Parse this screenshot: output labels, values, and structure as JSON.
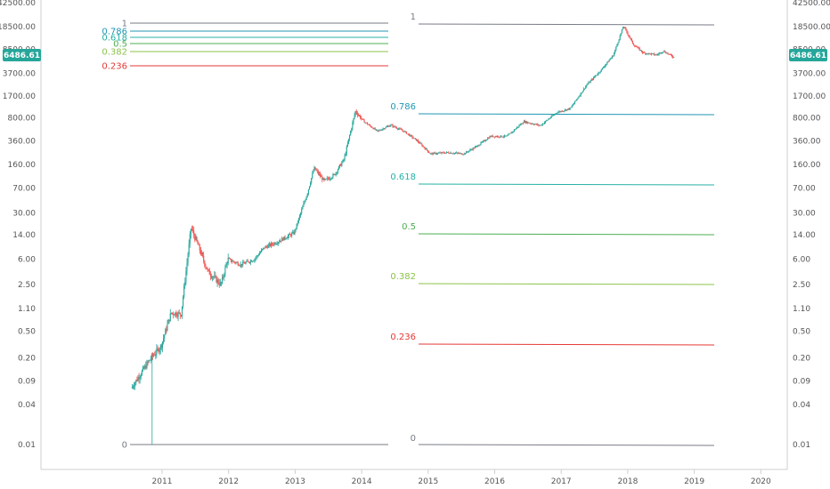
{
  "chart_data": {
    "type": "candlestick",
    "scale": "log",
    "y_ticks": [
      "42500.00",
      "18500.00",
      "8500.00",
      "3700.00",
      "1700.00",
      "800.00",
      "360.00",
      "160.00",
      "70.00",
      "30.00",
      "14.00",
      "6.00",
      "2.50",
      "1.10",
      "0.50",
      "0.20",
      "0.09",
      "0.04",
      "0.01"
    ],
    "x_ticks": [
      "2011",
      "2012",
      "2013",
      "2014",
      "2015",
      "2016",
      "2017",
      "2018",
      "2019",
      "2020"
    ],
    "last_price": "6486.61",
    "colors": {
      "up": "#26a69a",
      "down": "#ef5350",
      "price_tag": "#26a69a",
      "axis": "#555555"
    },
    "price_path": [
      {
        "date": "2010.55",
        "price": 0.07
      },
      {
        "date": "2010.85",
        "price": 0.2
      },
      {
        "date": "2011.0",
        "price": 0.3
      },
      {
        "date": "2011.15",
        "price": 0.95
      },
      {
        "date": "2011.3",
        "price": 0.9
      },
      {
        "date": "2011.45",
        "price": 18
      },
      {
        "date": "2011.55",
        "price": 10
      },
      {
        "date": "2011.7",
        "price": 4
      },
      {
        "date": "2011.9",
        "price": 2.5
      },
      {
        "date": "2012.0",
        "price": 6
      },
      {
        "date": "2012.2",
        "price": 5
      },
      {
        "date": "2012.4",
        "price": 6
      },
      {
        "date": "2012.55",
        "price": 9
      },
      {
        "date": "2012.75",
        "price": 11
      },
      {
        "date": "2013.0",
        "price": 15
      },
      {
        "date": "2013.2",
        "price": 60
      },
      {
        "date": "2013.3",
        "price": 140
      },
      {
        "date": "2013.45",
        "price": 90
      },
      {
        "date": "2013.6",
        "price": 110
      },
      {
        "date": "2013.75",
        "price": 190
      },
      {
        "date": "2013.92",
        "price": 1000
      },
      {
        "date": "2014.05",
        "price": 700
      },
      {
        "date": "2014.25",
        "price": 500
      },
      {
        "date": "2014.45",
        "price": 620
      },
      {
        "date": "2014.65",
        "price": 500
      },
      {
        "date": "2014.85",
        "price": 360
      },
      {
        "date": "2015.05",
        "price": 230
      },
      {
        "date": "2015.3",
        "price": 240
      },
      {
        "date": "2015.55",
        "price": 230
      },
      {
        "date": "2015.75",
        "price": 300
      },
      {
        "date": "2015.95",
        "price": 420
      },
      {
        "date": "2016.2",
        "price": 420
      },
      {
        "date": "2016.45",
        "price": 700
      },
      {
        "date": "2016.7",
        "price": 610
      },
      {
        "date": "2016.95",
        "price": 960
      },
      {
        "date": "2017.15",
        "price": 1100
      },
      {
        "date": "2017.4",
        "price": 2500
      },
      {
        "date": "2017.6",
        "price": 4000
      },
      {
        "date": "2017.8",
        "price": 7000
      },
      {
        "date": "2017.95",
        "price": 19000
      },
      {
        "date": "2018.1",
        "price": 10000
      },
      {
        "date": "2018.25",
        "price": 7500
      },
      {
        "date": "2018.45",
        "price": 7000
      },
      {
        "date": "2018.55",
        "price": 8000
      },
      {
        "date": "2018.7",
        "price": 6500
      }
    ],
    "fib_left": [
      {
        "label": "1",
        "color": "#787b86"
      },
      {
        "label": "0.786",
        "color": "#2196b4"
      },
      {
        "label": "0.618",
        "color": "#26b1a4"
      },
      {
        "label": "0.5",
        "color": "#4caf50"
      },
      {
        "label": "0.382",
        "color": "#8bc34a"
      },
      {
        "label": "0.236",
        "color": "#e53935"
      },
      {
        "label": "0",
        "color": "#787b86"
      }
    ],
    "fib_right": [
      {
        "label": "1",
        "color": "#787b86"
      },
      {
        "label": "0.786",
        "color": "#2196b4"
      },
      {
        "label": "0.618",
        "color": "#26b1a4"
      },
      {
        "label": "0.5",
        "color": "#4caf50"
      },
      {
        "label": "0.382",
        "color": "#8bc34a"
      },
      {
        "label": "0.236",
        "color": "#e53935"
      },
      {
        "label": "0",
        "color": "#787b86"
      }
    ]
  }
}
